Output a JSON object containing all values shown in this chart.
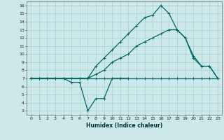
{
  "title": "",
  "xlabel": "Humidex (Indice chaleur)",
  "bg_color": "#cce8e8",
  "grid_color": "#aad4d4",
  "line_color": "#006868",
  "xlim": [
    -0.5,
    23.5
  ],
  "ylim": [
    2.5,
    16.5
  ],
  "xticks": [
    0,
    1,
    2,
    3,
    4,
    5,
    6,
    7,
    8,
    9,
    10,
    11,
    12,
    13,
    14,
    15,
    16,
    17,
    18,
    19,
    20,
    21,
    22,
    23
  ],
  "yticks": [
    3,
    4,
    5,
    6,
    7,
    8,
    9,
    10,
    11,
    12,
    13,
    14,
    15,
    16
  ],
  "curve_flat_x": [
    0,
    1,
    2,
    3,
    4,
    5,
    6,
    7,
    8,
    9,
    10,
    11,
    12,
    13,
    14,
    15,
    16,
    17,
    18,
    19,
    20,
    21,
    22,
    23
  ],
  "curve_flat_y": [
    7.0,
    7.0,
    7.0,
    7.0,
    7.0,
    7.0,
    7.0,
    7.0,
    7.0,
    7.0,
    7.0,
    7.0,
    7.0,
    7.0,
    7.0,
    7.0,
    7.0,
    7.0,
    7.0,
    7.0,
    7.0,
    7.0,
    7.0,
    7.0
  ],
  "curve_dip_x": [
    0,
    1,
    2,
    3,
    4,
    5,
    6,
    7,
    8,
    9,
    10,
    11,
    12
  ],
  "curve_dip_y": [
    7.0,
    7.0,
    7.0,
    7.0,
    7.0,
    6.5,
    6.5,
    3.0,
    4.5,
    4.5,
    7.0,
    7.0,
    7.0
  ],
  "curve_mid_x": [
    0,
    1,
    2,
    3,
    4,
    5,
    6,
    7,
    8,
    9,
    10,
    11,
    12,
    13,
    14,
    15,
    16,
    17,
    18,
    19,
    20,
    21,
    22,
    23
  ],
  "curve_mid_y": [
    7.0,
    7.0,
    7.0,
    7.0,
    7.0,
    7.0,
    7.0,
    7.0,
    7.5,
    8.0,
    9.0,
    9.5,
    10.0,
    11.0,
    11.5,
    12.0,
    12.5,
    13.0,
    13.0,
    12.0,
    9.8,
    8.5,
    8.5,
    7.0
  ],
  "curve_top_x": [
    0,
    1,
    2,
    3,
    4,
    5,
    6,
    7,
    8,
    9,
    10,
    11,
    12,
    13,
    14,
    15,
    16,
    17,
    18,
    19,
    20,
    21,
    22,
    23
  ],
  "curve_top_y": [
    7.0,
    7.0,
    7.0,
    7.0,
    7.0,
    7.0,
    7.0,
    7.0,
    8.5,
    9.5,
    10.5,
    11.5,
    12.5,
    13.5,
    14.5,
    14.8,
    16.0,
    15.0,
    13.0,
    12.0,
    9.5,
    8.5,
    8.5,
    7.0
  ]
}
